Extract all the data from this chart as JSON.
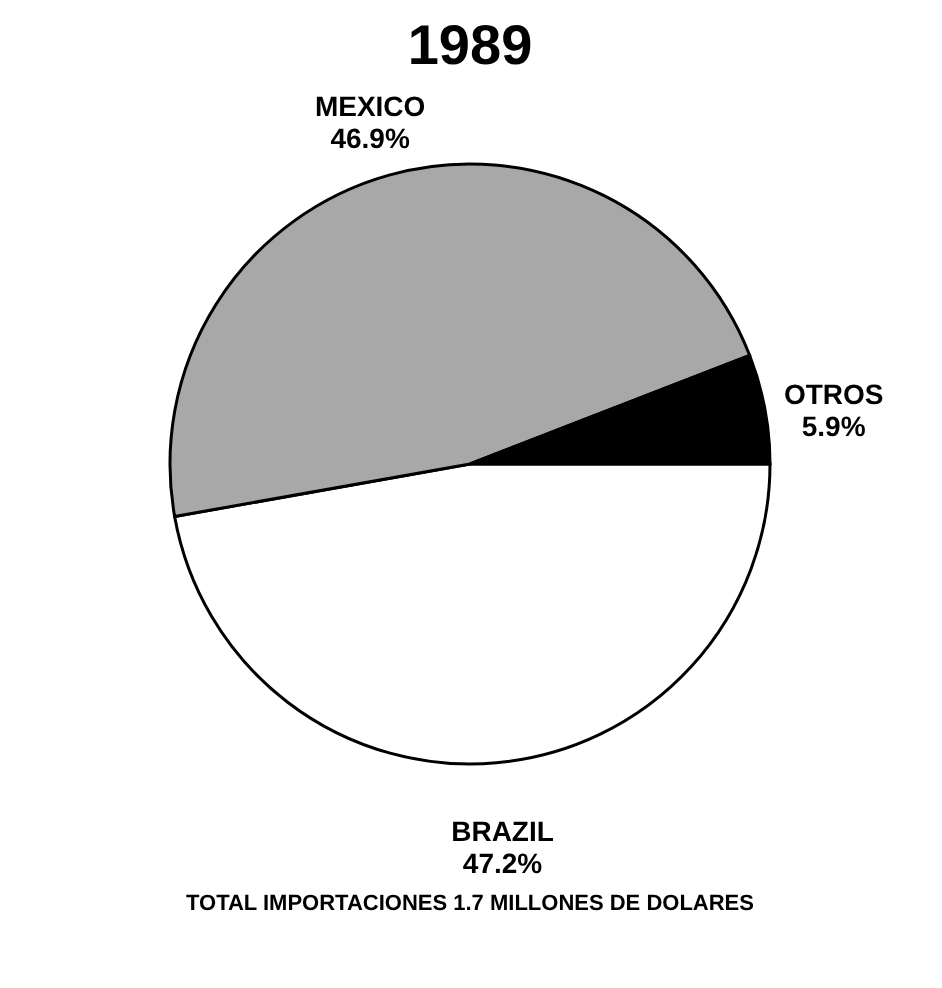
{
  "chart_data": {
    "type": "pie",
    "title": "1989",
    "categories": [
      "BRAZIL",
      "MEXICO",
      "OTROS"
    ],
    "values": [
      47.2,
      46.9,
      5.9
    ],
    "value_labels": [
      "47.2%",
      "46.9%",
      "5.9%"
    ],
    "colors": [
      "#ffffff",
      "#a8a8a8",
      "#000000"
    ],
    "annotations": [
      "TOTAL IMPORTACIONES  1.7 MILLONES DE DOLARES"
    ]
  }
}
